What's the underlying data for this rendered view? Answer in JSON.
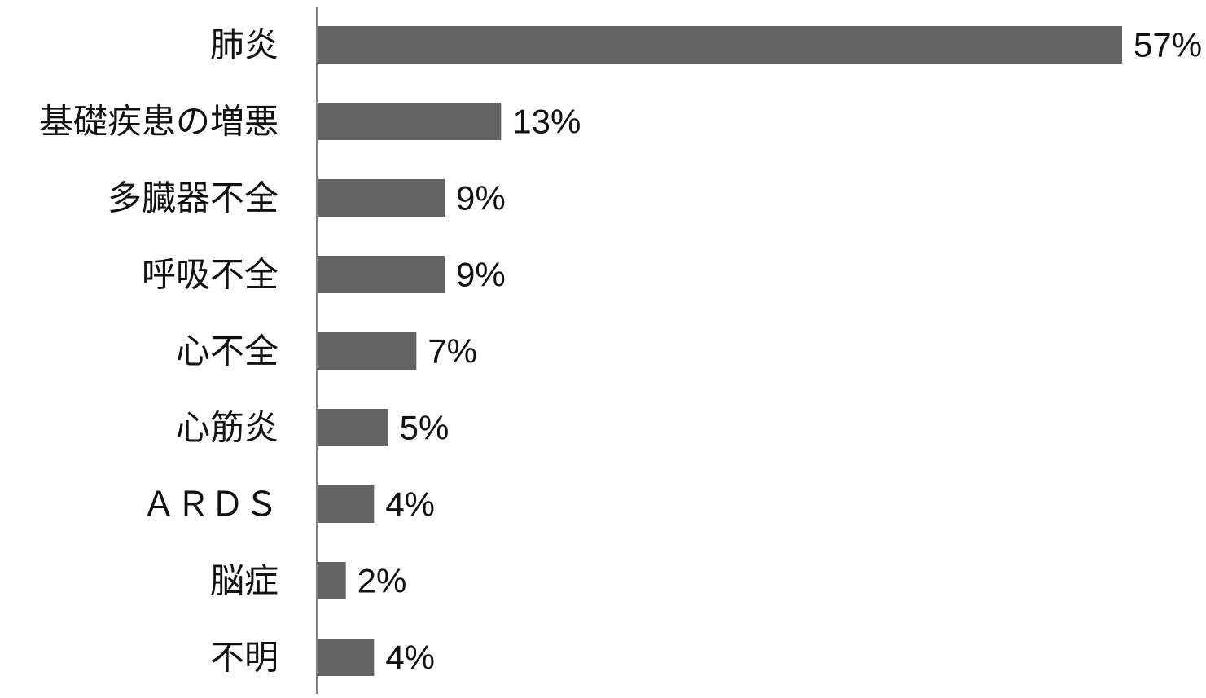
{
  "chart_data": {
    "type": "bar",
    "orientation": "horizontal",
    "title": "",
    "xlabel": "",
    "ylabel": "",
    "categories": [
      "肺炎",
      "基礎疾患の増悪",
      "多臓器不全",
      "呼吸不全",
      "心不全",
      "心筋炎",
      "ＡＲＤＳ",
      "脳症",
      "不明"
    ],
    "values": [
      57,
      13,
      9,
      9,
      7,
      5,
      4,
      2,
      4
    ],
    "value_labels": [
      "57%",
      "13%",
      "9%",
      "9%",
      "7%",
      "5%",
      "4%",
      "2%",
      "4%"
    ],
    "unit": "%",
    "grid": false,
    "legend": "none",
    "bar_color": "#626262",
    "axis_color": "#808080"
  }
}
